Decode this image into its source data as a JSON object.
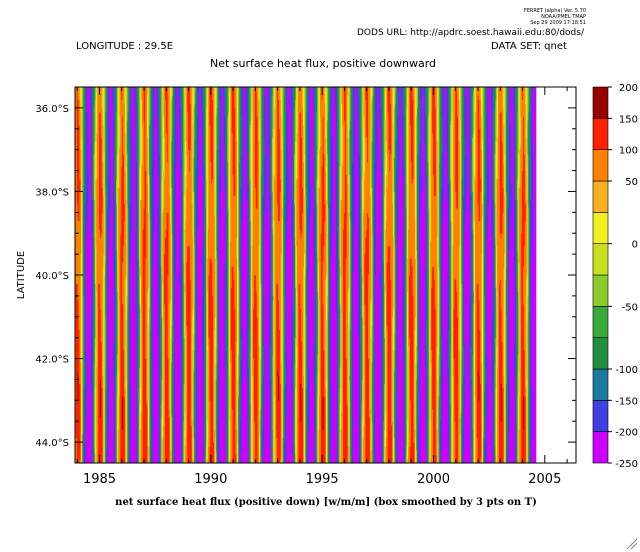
{
  "header": {
    "ferret_lines": [
      "FERRET (alpha) Ver. 5.70",
      "NOAA/PMEL TMAP",
      "Sep 29 2009 17:18:51"
    ],
    "dods_url": "DODS URL: http://apdrc.soest.hawaii.edu:80/dods/",
    "longitude": "LONGITUDE : 29.5E",
    "dataset": "DATA SET: qnet",
    "title": "Net surface heat flux, positive downward"
  },
  "chart_data": {
    "type": "heatmap",
    "title": "Net surface heat flux, positive downward",
    "xlabel": "net surface heat flux (positive down) [w/m/m] (box smoothed by 3 pts on T)",
    "ylabel": "LATITUDE",
    "x_ticks": [
      "1985",
      "1990",
      "1995",
      "2000",
      "2005"
    ],
    "x_tick_values": [
      1985,
      1990,
      1995,
      2000,
      2005
    ],
    "y_ticks": [
      "36.0°S",
      "38.0°S",
      "40.0°S",
      "42.0°S",
      "44.0°S"
    ],
    "y_tick_values": [
      -36,
      -38,
      -40,
      -42,
      -44
    ],
    "xlim": [
      1983.9,
      2006.4
    ],
    "ylim": [
      -44.5,
      -35.5
    ],
    "data_x_range": [
      1983.9,
      2004.6
    ],
    "colorbar": {
      "ticks": [
        "200",
        "150",
        "100",
        "50",
        "0",
        "-50",
        "-100",
        "-150",
        "-200",
        "-250"
      ],
      "tick_values": [
        200,
        150,
        100,
        50,
        0,
        -50,
        -100,
        -150,
        -200,
        -250
      ],
      "levels": [
        -250,
        -200,
        -150,
        -100,
        -75,
        -50,
        -25,
        0,
        25,
        50,
        100,
        150,
        200
      ],
      "colors": [
        "#cc00ff",
        "#4040e0",
        "#1a7aa0",
        "#1f8f3f",
        "#3aaa3a",
        "#8ccc2a",
        "#c8e020",
        "#f0f020",
        "#f8b020",
        "#ff8000",
        "#ff2000",
        "#990000"
      ]
    }
  }
}
